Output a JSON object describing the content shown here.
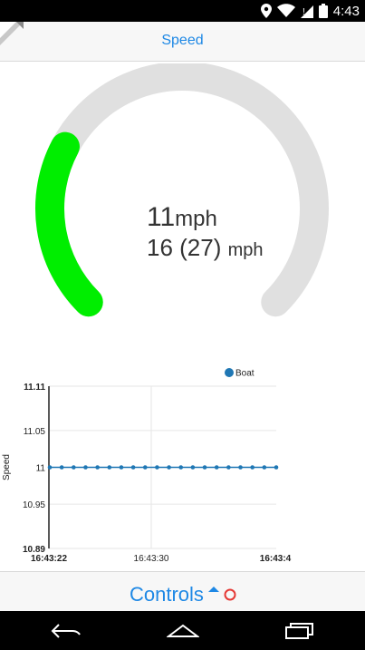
{
  "status_bar": {
    "time": "4:43",
    "icons": [
      "location-icon",
      "wifi-icon",
      "no-sim-icon",
      "battery-icon"
    ]
  },
  "header": {
    "title": "Speed"
  },
  "gauge": {
    "value_text": "11",
    "value_unit": "mph",
    "sub_text": "16 (27)",
    "sub_unit": "mph",
    "level_fraction": 0.27,
    "track_color": "#e0e0e0",
    "fill_color": "#00ee00"
  },
  "chart_data": {
    "type": "line",
    "ylabel": "Speed",
    "x_ticks": [
      "16:43:22",
      "16:43:30",
      "16:43:4"
    ],
    "y_ticks": [
      "11.11",
      "11.05",
      "11",
      "10.95",
      "10.89"
    ],
    "ylim": [
      10.89,
      11.11
    ],
    "series": [
      {
        "name": "Boat",
        "color": "#1f77b4",
        "values": [
          11,
          11,
          11,
          11,
          11,
          11,
          11,
          11,
          11,
          11,
          11,
          11,
          11,
          11,
          11,
          11,
          11,
          11,
          11,
          11
        ]
      }
    ],
    "grid": true,
    "legend": "top-right"
  },
  "controls": {
    "label": "Controls",
    "accent": "#1e88e5",
    "status_color": "#e53935"
  },
  "nav_bar": {
    "icons": [
      "back-icon",
      "home-icon",
      "recent-apps-icon"
    ]
  }
}
